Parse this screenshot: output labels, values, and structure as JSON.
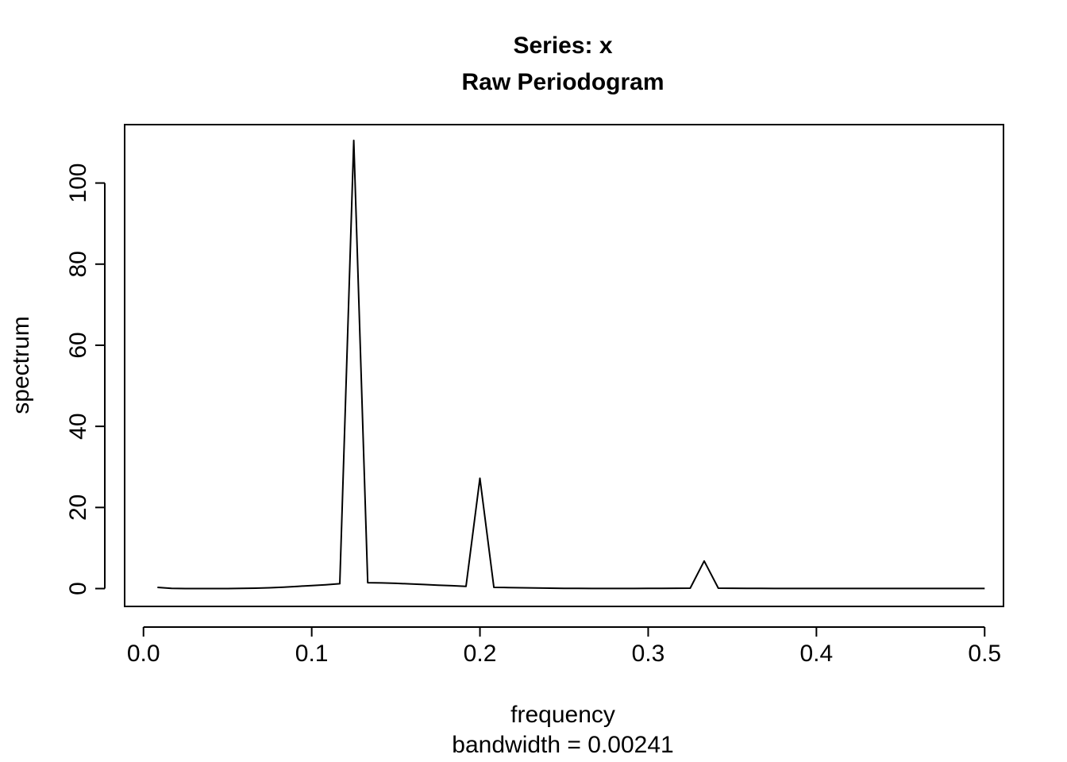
{
  "chart_data": {
    "type": "line",
    "title": "Series: x",
    "subtitle": "Raw Periodogram",
    "xlabel": "frequency",
    "xlabel_sub": "bandwidth = 0.00241",
    "ylabel": "spectrum",
    "xlim": [
      -0.0112,
      0.5112
    ],
    "ylim": [
      -4.4,
      114.4
    ],
    "x_ticks": [
      0.0,
      0.1,
      0.2,
      0.3,
      0.4,
      0.5
    ],
    "x_tick_labels": [
      "0.0",
      "0.1",
      "0.2",
      "0.3",
      "0.4",
      "0.5"
    ],
    "y_ticks": [
      0,
      20,
      40,
      60,
      80,
      100
    ],
    "y_tick_labels": [
      "0",
      "20",
      "40",
      "60",
      "80",
      "100"
    ],
    "grid": false,
    "series": [
      {
        "x": [
          0.0083,
          0.0167,
          0.025,
          0.0333,
          0.0417,
          0.05,
          0.0583,
          0.0667,
          0.075,
          0.0833,
          0.0917,
          0.1,
          0.1083,
          0.1167,
          0.125,
          0.1333,
          0.1417,
          0.15,
          0.1583,
          0.1667,
          0.175,
          0.1833,
          0.1917,
          0.2,
          0.2083,
          0.2167,
          0.225,
          0.2333,
          0.2417,
          0.25,
          0.2583,
          0.2667,
          0.275,
          0.2833,
          0.2917,
          0.3,
          0.3083,
          0.3167,
          0.325,
          0.3333,
          0.3417,
          0.35,
          0.3583,
          0.3667,
          0.375,
          0.3833,
          0.3917,
          0.4,
          0.4083,
          0.4167,
          0.425,
          0.4333,
          0.4417,
          0.45,
          0.4583,
          0.4667,
          0.475,
          0.4833,
          0.4917,
          0.5
        ],
        "values": [
          0.3,
          0.05,
          0.0,
          0.0,
          0.0,
          0.0,
          0.05,
          0.1,
          0.2,
          0.35,
          0.55,
          0.75,
          0.95,
          1.2,
          110.5,
          1.45,
          1.4,
          1.3,
          1.15,
          1.0,
          0.85,
          0.7,
          0.55,
          27.2,
          0.3,
          0.25,
          0.2,
          0.15,
          0.1,
          0.05,
          0.05,
          0.03,
          0.02,
          0.02,
          0.03,
          0.04,
          0.06,
          0.08,
          0.1,
          6.8,
          0.1,
          0.08,
          0.05,
          0.04,
          0.03,
          0.02,
          0.02,
          0.02,
          0.02,
          0.02,
          0.02,
          0.02,
          0.02,
          0.02,
          0.02,
          0.02,
          0.02,
          0.02,
          0.02,
          0.02
        ]
      }
    ]
  }
}
